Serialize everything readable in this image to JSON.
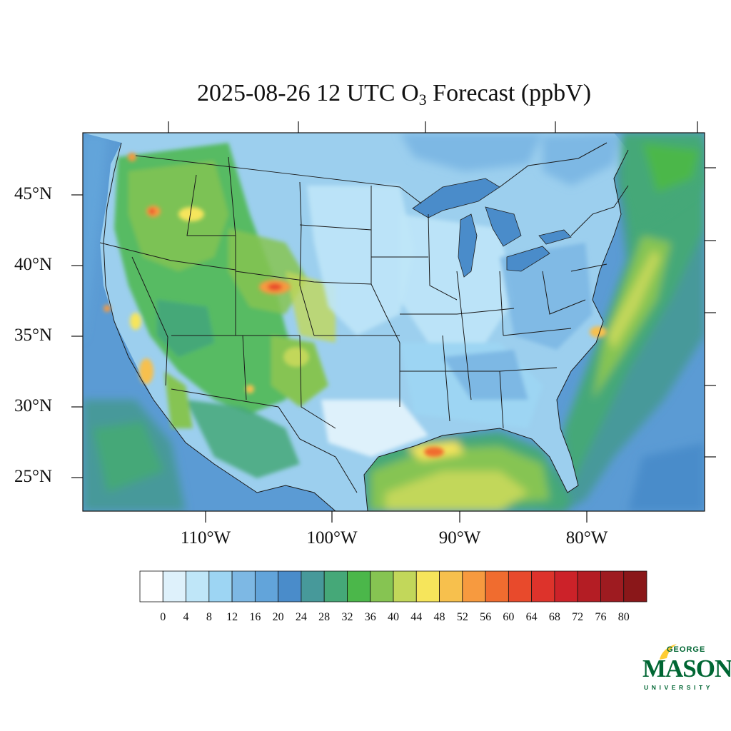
{
  "title": {
    "prefix": "2025-08-26 12 UTC O",
    "subscript": "3",
    "suffix": " Forecast (ppbV)"
  },
  "map": {
    "lat_labels": [
      "45°N",
      "40°N",
      "35°N",
      "30°N",
      "25°N"
    ],
    "lon_labels": [
      "110°W",
      "100°W",
      "90°W",
      "80°W"
    ],
    "ocean_color": "#5b9bd4",
    "land_base_color": "#9ccfee"
  },
  "colorbar": {
    "colors": [
      "#ffffff",
      "#def1fb",
      "#bfe6f8",
      "#9dd5f3",
      "#7db8e4",
      "#62a4da",
      "#4a8cca",
      "#47999a",
      "#45a878",
      "#4bb74a",
      "#86c452",
      "#c2d75a",
      "#f6e55b",
      "#f7c04d",
      "#f79a3f",
      "#f06c2f",
      "#e84a2c",
      "#dd332b",
      "#cc2229",
      "#b41d24",
      "#9e1b20",
      "#8a1719"
    ],
    "labels": [
      "0",
      "4",
      "8",
      "12",
      "16",
      "20",
      "24",
      "28",
      "32",
      "36",
      "40",
      "44",
      "48",
      "52",
      "56",
      "60",
      "64",
      "68",
      "72",
      "76",
      "80"
    ]
  },
  "logo": {
    "george": "GEORGE",
    "mason": "MASON",
    "university": "UNIVERSITY",
    "green": "#006633",
    "gold": "#ffcc33"
  }
}
